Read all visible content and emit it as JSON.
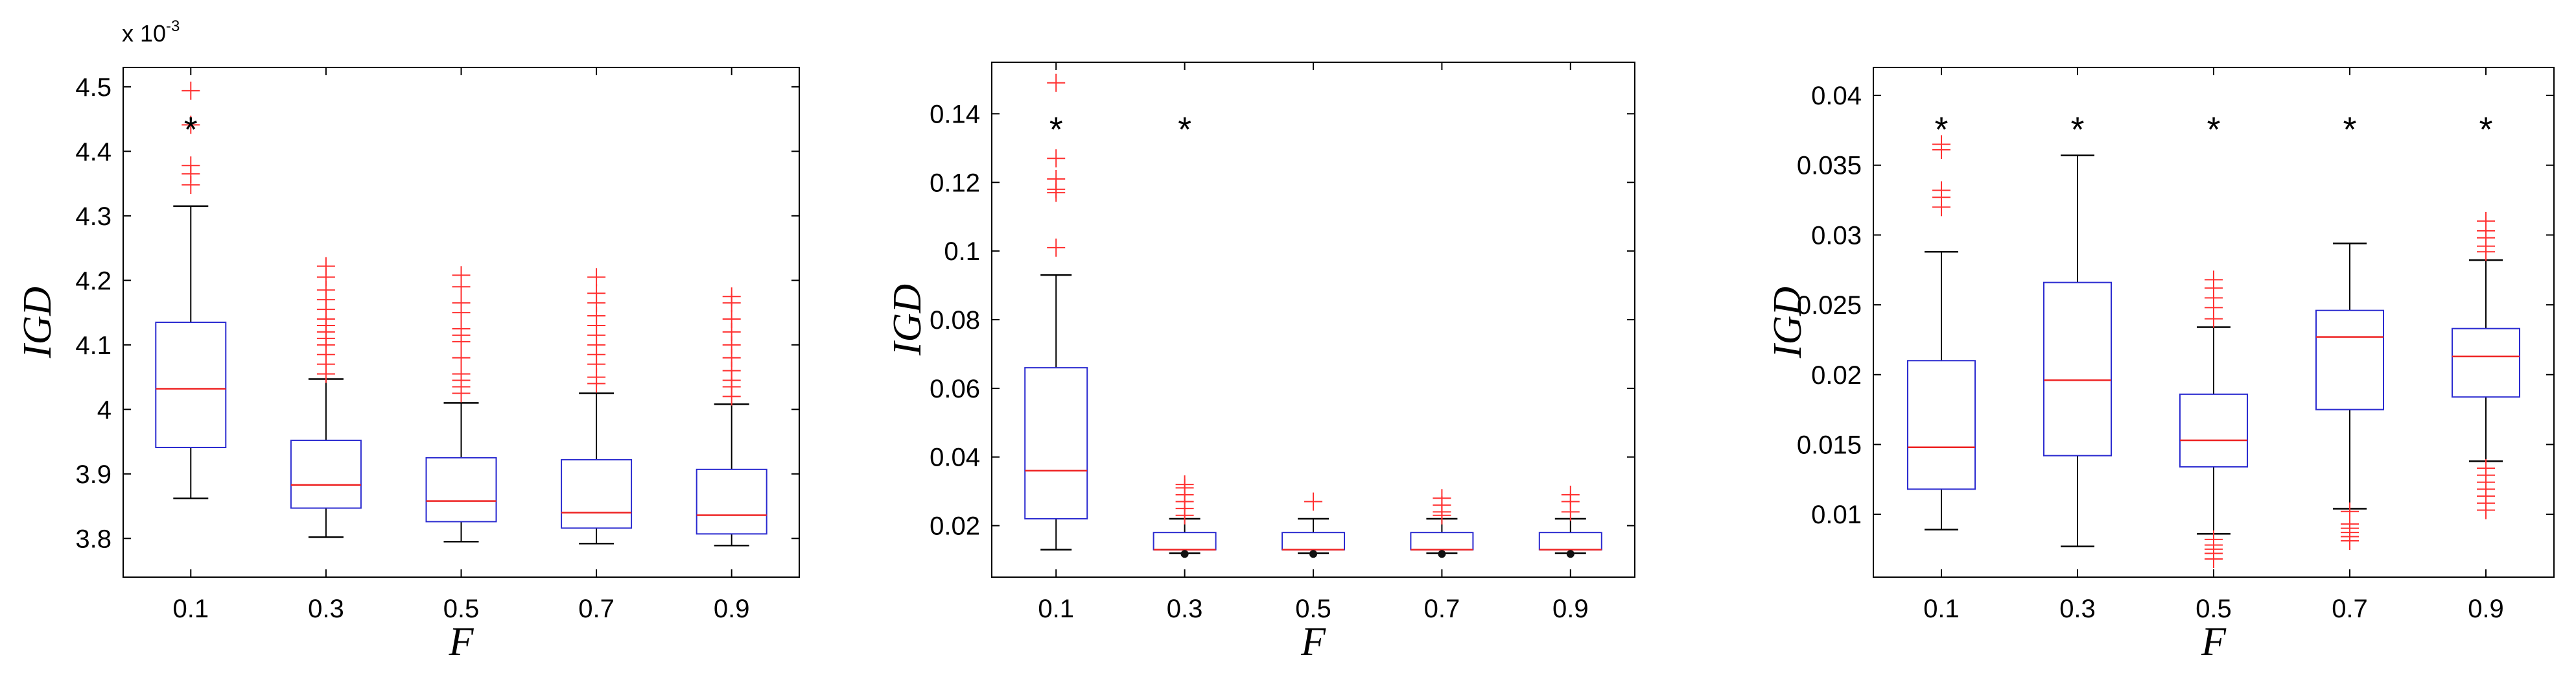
{
  "colors": {
    "box": "#2b2bd0",
    "median": "#ee2222",
    "outlier": "#ff3030",
    "whisker": "#000000",
    "axis": "#000000",
    "mean_dot": "#111111"
  },
  "chart_data": [
    {
      "type": "boxplot",
      "xlabel": "F",
      "ylabel": "IGD",
      "y_exponent_label": "x 10",
      "y_exponent_power": "-3",
      "categories": [
        "0.1",
        "0.3",
        "0.5",
        "0.7",
        "0.9"
      ],
      "ylim": [
        3.74,
        4.53
      ],
      "yticks": [
        3.8,
        3.9,
        4.0,
        4.1,
        4.2,
        4.3,
        4.4,
        4.5
      ],
      "ytick_labels": [
        "3.8",
        "3.9",
        "4",
        "4.1",
        "4.2",
        "4.3",
        "4.4",
        "4.5"
      ],
      "grid": false,
      "boxes": [
        {
          "category": "0.1",
          "whisker_low": 3.862,
          "q1": 3.941,
          "median": 4.032,
          "q3": 4.135,
          "whisker_high": 4.315,
          "outliers": [
            4.348,
            4.365,
            4.378,
            4.441,
            4.494
          ],
          "star": true
        },
        {
          "category": "0.3",
          "whisker_low": 3.802,
          "q1": 3.847,
          "median": 3.883,
          "q3": 3.952,
          "whisker_high": 4.047,
          "outliers": [
            4.055,
            4.07,
            4.085,
            4.1,
            4.11,
            4.12,
            4.13,
            4.14,
            4.155,
            4.17,
            4.185,
            4.205,
            4.222
          ],
          "star": false
        },
        {
          "category": "0.5",
          "whisker_low": 3.795,
          "q1": 3.826,
          "median": 3.858,
          "q3": 3.925,
          "whisker_high": 4.01,
          "outliers": [
            4.025,
            4.035,
            4.045,
            4.055,
            4.08,
            4.105,
            4.115,
            4.125,
            4.15,
            4.165,
            4.19,
            4.208
          ],
          "star": false
        },
        {
          "category": "0.7",
          "whisker_low": 3.792,
          "q1": 3.816,
          "median": 3.84,
          "q3": 3.922,
          "whisker_high": 4.025,
          "outliers": [
            4.04,
            4.05,
            4.07,
            4.085,
            4.1,
            4.115,
            4.13,
            4.145,
            4.165,
            4.18,
            4.205
          ],
          "star": false
        },
        {
          "category": "0.9",
          "whisker_low": 3.789,
          "q1": 3.807,
          "median": 3.836,
          "q3": 3.907,
          "whisker_high": 4.008,
          "outliers": [
            4.02,
            4.035,
            4.045,
            4.06,
            4.08,
            4.1,
            4.12,
            4.14,
            4.165,
            4.175
          ],
          "star": false
        }
      ]
    },
    {
      "type": "boxplot",
      "xlabel": "F",
      "ylabel": "IGD",
      "categories": [
        "0.1",
        "0.3",
        "0.5",
        "0.7",
        "0.9"
      ],
      "ylim": [
        0.005,
        0.155
      ],
      "yticks": [
        0.02,
        0.04,
        0.06,
        0.08,
        0.1,
        0.12,
        0.14
      ],
      "ytick_labels": [
        "0.02",
        "0.04",
        "0.06",
        "0.08",
        "0.1",
        "0.12",
        "0.14"
      ],
      "grid": false,
      "boxes": [
        {
          "category": "0.1",
          "whisker_low": 0.013,
          "q1": 0.022,
          "median": 0.036,
          "q3": 0.066,
          "whisker_high": 0.093,
          "outliers": [
            0.101,
            0.117,
            0.118,
            0.121,
            0.127,
            0.149
          ],
          "star": true
        },
        {
          "category": "0.3",
          "whisker_low": 0.012,
          "q1": 0.013,
          "median": 0.013,
          "q3": 0.018,
          "whisker_high": 0.022,
          "outliers": [
            0.023,
            0.025,
            0.027,
            0.029,
            0.031,
            0.032
          ],
          "star": true,
          "dot": 0.0125
        },
        {
          "category": "0.5",
          "whisker_low": 0.012,
          "q1": 0.013,
          "median": 0.013,
          "q3": 0.018,
          "whisker_high": 0.022,
          "outliers": [
            0.027
          ],
          "star": false,
          "dot": 0.0125
        },
        {
          "category": "0.7",
          "whisker_low": 0.012,
          "q1": 0.013,
          "median": 0.013,
          "q3": 0.018,
          "whisker_high": 0.022,
          "outliers": [
            0.023,
            0.024,
            0.026,
            0.028
          ],
          "star": false,
          "dot": 0.0125
        },
        {
          "category": "0.9",
          "whisker_low": 0.012,
          "q1": 0.013,
          "median": 0.013,
          "q3": 0.018,
          "whisker_high": 0.022,
          "outliers": [
            0.024,
            0.027,
            0.029
          ],
          "star": false,
          "dot": 0.0125
        }
      ]
    },
    {
      "type": "boxplot",
      "xlabel": "F",
      "ylabel": "IGD",
      "categories": [
        "0.1",
        "0.3",
        "0.5",
        "0.7",
        "0.9"
      ],
      "ylim": [
        0.0055,
        0.042
      ],
      "yticks": [
        0.01,
        0.015,
        0.02,
        0.025,
        0.03,
        0.035,
        0.04
      ],
      "ytick_labels": [
        "0.01",
        "0.015",
        "0.02",
        "0.025",
        "0.03",
        "0.035",
        "0.04"
      ],
      "grid": false,
      "boxes": [
        {
          "category": "0.1",
          "whisker_low": 0.0089,
          "q1": 0.0118,
          "median": 0.0148,
          "q3": 0.021,
          "whisker_high": 0.0288,
          "outliers": [
            0.032,
            0.0327,
            0.0332,
            0.0361,
            0.0365
          ],
          "star": true
        },
        {
          "category": "0.3",
          "whisker_low": 0.0077,
          "q1": 0.0142,
          "median": 0.0196,
          "q3": 0.0266,
          "whisker_high": 0.0357,
          "outliers": [],
          "star": true
        },
        {
          "category": "0.5",
          "whisker_low": 0.0086,
          "q1": 0.0134,
          "median": 0.0153,
          "q3": 0.0186,
          "whisker_high": 0.0234,
          "outliers": [
            0.0068,
            0.0072,
            0.0075,
            0.0078,
            0.0082,
            0.024,
            0.0248,
            0.0255,
            0.0262,
            0.0268
          ],
          "star": true
        },
        {
          "category": "0.7",
          "whisker_low": 0.0104,
          "q1": 0.0175,
          "median": 0.0227,
          "q3": 0.0246,
          "whisker_high": 0.0294,
          "outliers": [
            0.0081,
            0.0084,
            0.0087,
            0.009,
            0.0093,
            0.0102
          ],
          "star": true
        },
        {
          "category": "0.9",
          "whisker_low": 0.0138,
          "q1": 0.0184,
          "median": 0.0213,
          "q3": 0.0233,
          "whisker_high": 0.0282,
          "outliers": [
            0.0103,
            0.0108,
            0.0113,
            0.0118,
            0.0123,
            0.0128,
            0.0133,
            0.0288,
            0.0292,
            0.0298,
            0.0303,
            0.031
          ],
          "star": true
        }
      ]
    }
  ]
}
